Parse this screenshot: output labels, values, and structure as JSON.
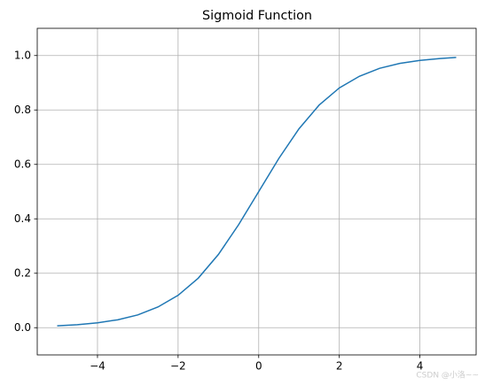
{
  "chart_data": {
    "type": "line",
    "title": "Sigmoid Function",
    "x": [
      -5,
      -4.5,
      -4,
      -3.5,
      -3,
      -2.5,
      -2,
      -1.5,
      -1,
      -0.5,
      0,
      0.5,
      1,
      1.5,
      2,
      2.5,
      3,
      3.5,
      4,
      4.5,
      4.9
    ],
    "series": [
      {
        "color": "#1f77b4",
        "values": [
          0.007,
          0.011,
          0.018,
          0.029,
          0.047,
          0.076,
          0.119,
          0.182,
          0.269,
          0.378,
          0.5,
          0.622,
          0.731,
          0.818,
          0.881,
          0.924,
          0.953,
          0.971,
          0.982,
          0.989,
          0.993
        ]
      }
    ],
    "xlim": [
      -5.495,
      5.395
    ],
    "xticks": [
      {
        "value": -4,
        "label": "−4"
      },
      {
        "value": -2,
        "label": "−2"
      },
      0,
      2,
      4
    ],
    "ylim": [
      -0.1,
      1.1
    ],
    "yticks": [
      {
        "value": 0,
        "label": "0.0"
      },
      0.2,
      0.4,
      0.6,
      0.8,
      {
        "value": 1,
        "label": "1.0"
      }
    ],
    "grid": true,
    "watermark": "CSDN @小洛~~"
  }
}
